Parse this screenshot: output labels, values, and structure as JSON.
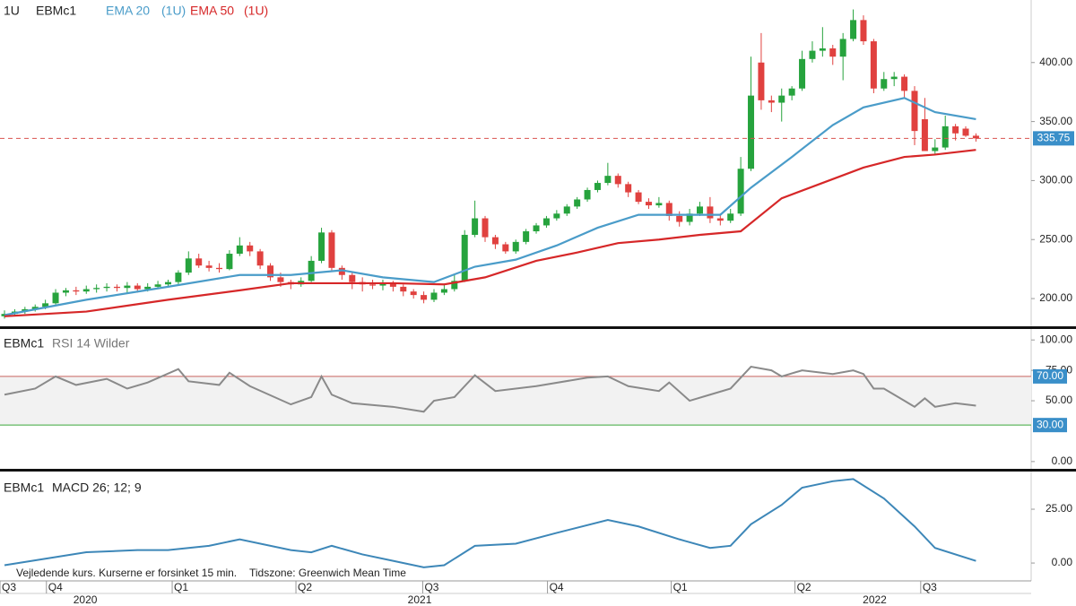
{
  "chart_data": [
    {
      "type": "candlestick",
      "interval": "1U",
      "symbol": "EBMc1",
      "up_color": "#26a33d",
      "down_color": "#e0413f",
      "xlim": [
        -0.44,
        100.4
      ],
      "ylim": [
        176.5,
        453
      ],
      "yticks": [
        {
          "value": 200,
          "label": "200.00"
        },
        {
          "value": 250,
          "label": "250.00"
        },
        {
          "value": 300,
          "label": "300.00"
        },
        {
          "value": 350,
          "label": "350.00"
        },
        {
          "value": 400,
          "label": "400.00"
        }
      ],
      "ohlc": [
        [
          185,
          190,
          183,
          187
        ],
        [
          187,
          191,
          185,
          189
        ],
        [
          189,
          193,
          187,
          191
        ],
        [
          191,
          195,
          189,
          193
        ],
        [
          193,
          199,
          191,
          196
        ],
        [
          196,
          208,
          195,
          205
        ],
        [
          205,
          209,
          202,
          207
        ],
        [
          207,
          210,
          203,
          206
        ],
        [
          206,
          211,
          204,
          208
        ],
        [
          208,
          212,
          205,
          209
        ],
        [
          209,
          213,
          206,
          210
        ],
        [
          210,
          212,
          206,
          209
        ],
        [
          209,
          214,
          205,
          211
        ],
        [
          211,
          213,
          205,
          208
        ],
        [
          208,
          213,
          206,
          210
        ],
        [
          210,
          215,
          208,
          212
        ],
        [
          212,
          216,
          210,
          214
        ],
        [
          214,
          224,
          212,
          222
        ],
        [
          222,
          240,
          220,
          234
        ],
        [
          234,
          238,
          226,
          228
        ],
        [
          228,
          232,
          223,
          226
        ],
        [
          226,
          230,
          222,
          225
        ],
        [
          225,
          241,
          224,
          238
        ],
        [
          238,
          252,
          236,
          245
        ],
        [
          245,
          248,
          236,
          240
        ],
        [
          240,
          242,
          225,
          228
        ],
        [
          228,
          230,
          215,
          218
        ],
        [
          218,
          222,
          210,
          214
        ],
        [
          214,
          216,
          208,
          212
        ],
        [
          212,
          218,
          210,
          215
        ],
        [
          215,
          236,
          214,
          232
        ],
        [
          232,
          260,
          230,
          256
        ],
        [
          256,
          258,
          224,
          226
        ],
        [
          226,
          228,
          216,
          220
        ],
        [
          220,
          222,
          208,
          214
        ],
        [
          214,
          218,
          206,
          212
        ],
        [
          212,
          216,
          208,
          211
        ],
        [
          211,
          216,
          207,
          213
        ],
        [
          213,
          215,
          206,
          210
        ],
        [
          210,
          212,
          202,
          206
        ],
        [
          206,
          208,
          200,
          203
        ],
        [
          203,
          206,
          196,
          199
        ],
        [
          199,
          208,
          197,
          205
        ],
        [
          205,
          212,
          203,
          208
        ],
        [
          208,
          220,
          206,
          215
        ],
        [
          215,
          258,
          214,
          254
        ],
        [
          254,
          283,
          252,
          268
        ],
        [
          268,
          270,
          248,
          252
        ],
        [
          252,
          254,
          242,
          246
        ],
        [
          246,
          248,
          238,
          240
        ],
        [
          240,
          250,
          238,
          248
        ],
        [
          248,
          259,
          246,
          257
        ],
        [
          257,
          264,
          255,
          262
        ],
        [
          262,
          270,
          260,
          268
        ],
        [
          268,
          275,
          266,
          272
        ],
        [
          272,
          280,
          270,
          278
        ],
        [
          278,
          286,
          276,
          284
        ],
        [
          284,
          294,
          282,
          292
        ],
        [
          292,
          300,
          290,
          298
        ],
        [
          298,
          315,
          296,
          304
        ],
        [
          304,
          306,
          294,
          297
        ],
        [
          297,
          299,
          286,
          290
        ],
        [
          290,
          292,
          280,
          282
        ],
        [
          282,
          285,
          276,
          279
        ],
        [
          279,
          286,
          277,
          281
        ],
        [
          281,
          283,
          266,
          270
        ],
        [
          270,
          274,
          261,
          265
        ],
        [
          265,
          276,
          262,
          272
        ],
        [
          272,
          282,
          270,
          278
        ],
        [
          278,
          286,
          264,
          268
        ],
        [
          268,
          272,
          262,
          266
        ],
        [
          266,
          276,
          264,
          272
        ],
        [
          272,
          320,
          270,
          310
        ],
        [
          310,
          405,
          308,
          372
        ],
        [
          400,
          425,
          360,
          368
        ],
        [
          368,
          372,
          358,
          366
        ],
        [
          366,
          378,
          350,
          372
        ],
        [
          372,
          380,
          368,
          378
        ],
        [
          378,
          410,
          376,
          403
        ],
        [
          403,
          418,
          400,
          410
        ],
        [
          410,
          430,
          405,
          412
        ],
        [
          412,
          415,
          398,
          405
        ],
        [
          405,
          425,
          385,
          420
        ],
        [
          420,
          445,
          418,
          436
        ],
        [
          436,
          440,
          415,
          418
        ],
        [
          418,
          420,
          374,
          378
        ],
        [
          378,
          392,
          376,
          386
        ],
        [
          386,
          392,
          380,
          388
        ],
        [
          388,
          390,
          370,
          376
        ],
        [
          376,
          380,
          330,
          342
        ],
        [
          352,
          370,
          325,
          325
        ],
        [
          325,
          335,
          322,
          328
        ],
        [
          328,
          355,
          326,
          346
        ],
        [
          346,
          348,
          334,
          340
        ],
        [
          344,
          346,
          337,
          338
        ],
        [
          338,
          340,
          333,
          335.75
        ]
      ],
      "series": [
        {
          "name": "EMA 20",
          "interval_label": "(1U)",
          "color": "#4a9cc9",
          "x": [
            0,
            8,
            16,
            23,
            28,
            33,
            37,
            42,
            46,
            50,
            54,
            58,
            62,
            66,
            70,
            73,
            77,
            81,
            84,
            88,
            91,
            95
          ],
          "values": [
            186,
            199,
            210,
            220,
            220,
            224,
            218,
            214,
            227,
            233,
            245,
            260,
            271,
            271,
            271,
            294,
            320,
            347,
            362,
            370,
            358,
            352
          ]
        },
        {
          "name": "EMA 50",
          "interval_label": "(1U)",
          "color": "#d62728",
          "x": [
            0,
            8,
            16,
            23,
            28,
            33,
            38,
            43,
            47,
            52,
            56,
            60,
            64,
            68,
            72,
            76,
            80,
            84,
            88,
            91,
            95
          ],
          "values": [
            185,
            189,
            199,
            207,
            213,
            213,
            213,
            212,
            218,
            232,
            239,
            247,
            250,
            254,
            257,
            285,
            298,
            311,
            320,
            322,
            326
          ]
        }
      ]
    },
    {
      "type": "line",
      "symbol": "EBMc1",
      "indicator": "RSI 14 Wilder",
      "xlim": [
        -0.44,
        100.4
      ],
      "ylim": [
        -6,
        109
      ],
      "yticks": [
        {
          "value": 0,
          "label": "0.00"
        },
        {
          "value": 50,
          "label": "50.00"
        },
        {
          "value": 75,
          "label": "75.00"
        },
        {
          "value": 100,
          "label": "100.00"
        }
      ],
      "hlines": [
        {
          "value": 70,
          "label": "70.00",
          "color": "#c8645f"
        },
        {
          "value": 30,
          "label": "30.00",
          "color": "#3aa83a"
        }
      ],
      "series": [
        {
          "name": "RSI",
          "color": "#8a8a8a",
          "x": [
            0,
            3,
            5,
            7,
            10,
            12,
            14,
            17,
            18,
            21,
            22,
            24,
            28,
            30,
            31,
            32,
            34,
            38,
            41,
            42,
            44,
            46,
            48,
            52,
            57,
            59,
            61,
            64,
            65,
            67,
            69,
            71,
            73,
            75,
            76,
            78,
            81,
            83,
            84,
            85,
            86,
            88,
            89,
            90,
            91,
            93,
            95
          ],
          "values": [
            55,
            60,
            70,
            63,
            68,
            60,
            65,
            76,
            66,
            63,
            73,
            62,
            47,
            53,
            70,
            55,
            48,
            45,
            41,
            50,
            53,
            71,
            58,
            62,
            69,
            70,
            62,
            58,
            65,
            50,
            55,
            60,
            78,
            75,
            70,
            75,
            72,
            75,
            72,
            60,
            60,
            50,
            45,
            52,
            45,
            48,
            46
          ]
        }
      ]
    },
    {
      "type": "line",
      "symbol": "EBMc1",
      "indicator": "MACD 26; 12; 9",
      "xlim": [
        -0.44,
        100.4
      ],
      "ylim": [
        -8.3,
        42.5
      ],
      "yticks": [
        {
          "value": 0,
          "label": "0.00"
        },
        {
          "value": 25,
          "label": "25.00"
        }
      ],
      "xticks": [
        {
          "value": -0.44,
          "label": "Q3"
        },
        {
          "value": 4.1,
          "label": "Q4"
        },
        {
          "value": 16.4,
          "label": "Q1"
        },
        {
          "value": 28.5,
          "label": "Q2"
        },
        {
          "value": 40.9,
          "label": "Q3"
        },
        {
          "value": 53.1,
          "label": "Q4"
        },
        {
          "value": 65.2,
          "label": "Q1"
        },
        {
          "value": 77.3,
          "label": "Q2"
        },
        {
          "value": 89.6,
          "label": "Q3"
        }
      ],
      "year_ticks": [
        {
          "value": 7.9,
          "label": "2020"
        },
        {
          "value": 40.6,
          "label": "2021"
        },
        {
          "value": 85.1,
          "label": "2022"
        }
      ],
      "series": [
        {
          "name": "MACD",
          "color": "#3d87b8",
          "x": [
            0,
            4,
            8,
            13,
            16,
            20,
            23,
            28,
            30,
            32,
            35,
            38,
            41,
            43,
            46,
            50,
            54,
            59,
            62,
            66,
            69,
            71,
            73,
            76,
            78,
            81,
            83,
            86,
            89,
            91,
            95
          ],
          "values": [
            -1,
            2,
            5,
            6,
            6,
            8,
            11,
            6,
            5,
            8,
            4,
            1,
            -2,
            -1,
            8,
            9,
            14,
            20,
            17,
            11,
            7,
            8,
            18,
            27,
            35,
            38,
            39,
            30,
            17,
            7,
            1
          ]
        }
      ]
    }
  ],
  "footer_notes": [
    "Vejledende kurs. Kurserne er forsinket 15 min.",
    "Tidszone: Greenwich Mean Time"
  ]
}
